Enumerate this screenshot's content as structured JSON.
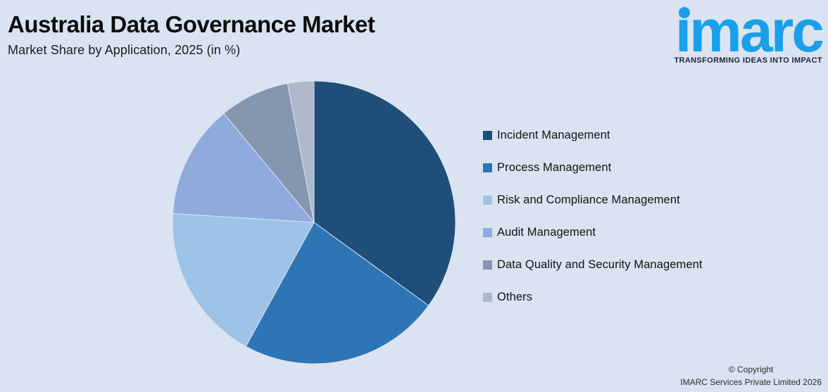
{
  "page": {
    "background": "#DAE3F1"
  },
  "header": {
    "title": "Australia Data Governance Market",
    "subtitle": "Market Share by Application, 2025 (in %)"
  },
  "logo": {
    "wordmark": "imarc",
    "wordmark_dotless": "ımarc",
    "tagline": "TRANSFORMING IDEAS INTO IMPACT",
    "brand_color": "#1AA0E8",
    "tagline_color": "#1B2537"
  },
  "chart_data": {
    "type": "pie",
    "title": "Australia Data Governance Market",
    "subtitle": "Market Share by Application, 2025 (in %)",
    "unit": "%",
    "start_angle_deg": 0,
    "direction": "clockwise",
    "legend_position": "right",
    "categories": [
      "Incident Management",
      "Process Management",
      "Risk and Compliance Management",
      "Audit Management",
      "Data Quality and Security Management",
      "Others"
    ],
    "values": [
      35,
      23,
      18,
      13,
      8,
      3
    ],
    "colors": [
      "#1F4E79",
      "#2E75B6",
      "#9DC3E6",
      "#8FAADC",
      "#8496B0",
      "#ADB9CA"
    ]
  },
  "footer": {
    "line1": "© Copyright",
    "line2": "IMARC Services Private Limited 2026"
  }
}
